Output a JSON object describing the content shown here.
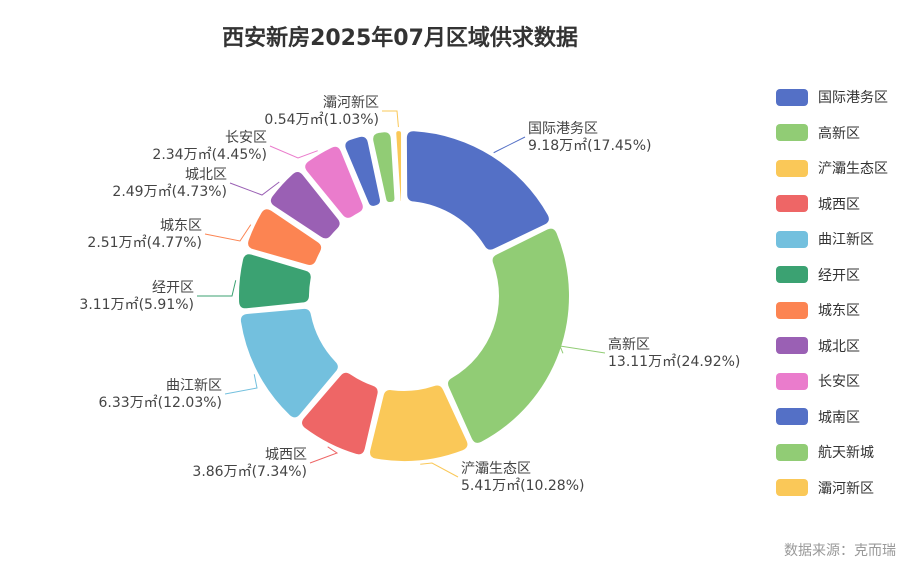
{
  "title": "西安新房2025年07月区域供求数据",
  "source": "数据来源：克而瑞",
  "chart_data": {
    "type": "pie",
    "title": "西安新房2025年07月区域供求数据",
    "unit": "万㎡",
    "legend_position": "right",
    "slices": [
      {
        "name": "国际港务区",
        "value": 9.18,
        "percent": 17.45,
        "label": "9.18万㎡(17.45%)",
        "color": "#5470c6"
      },
      {
        "name": "高新区",
        "value": 13.11,
        "percent": 24.92,
        "label": "13.11万㎡(24.92%)",
        "color": "#91cc75"
      },
      {
        "name": "浐灞生态区",
        "value": 5.41,
        "percent": 10.28,
        "label": "5.41万㎡(10.28%)",
        "color": "#fac858"
      },
      {
        "name": "城西区",
        "value": 3.86,
        "percent": 7.34,
        "label": "3.86万㎡(7.34%)",
        "color": "#ee6666"
      },
      {
        "name": "曲江新区",
        "value": 6.33,
        "percent": 12.03,
        "label": "6.33万㎡(12.03%)",
        "color": "#73c0de"
      },
      {
        "name": "经开区",
        "value": 3.11,
        "percent": 5.91,
        "label": "3.11万㎡(5.91%)",
        "color": "#3ba272"
      },
      {
        "name": "城东区",
        "value": 2.51,
        "percent": 4.77,
        "label": "2.51万㎡(4.77%)",
        "color": "#fc8452"
      },
      {
        "name": "城北区",
        "value": 2.49,
        "percent": 4.73,
        "label": "2.49万㎡(4.73%)",
        "color": "#9a60b4"
      },
      {
        "name": "长安区",
        "value": 2.34,
        "percent": 4.45,
        "label": "2.34万㎡(4.45%)",
        "color": "#ea7ccc"
      },
      {
        "name": "城南区",
        "value": 1.48,
        "percent": 2.81,
        "label": "",
        "color": "#5470c6"
      },
      {
        "name": "航天新城",
        "value": 1.21,
        "percent": 2.29,
        "label": "",
        "color": "#91cc75"
      },
      {
        "name": "灞河新区",
        "value": 0.54,
        "percent": 1.03,
        "label": "0.54万㎡(1.03%)",
        "color": "#fac858"
      }
    ]
  }
}
